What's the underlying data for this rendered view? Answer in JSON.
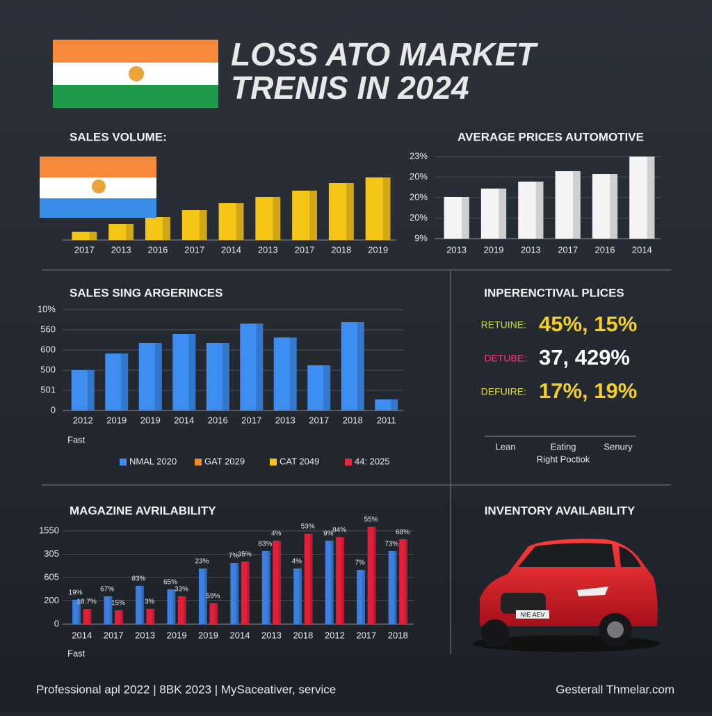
{
  "title_lines": [
    "LOSS ATO MARKET",
    "TRENIS IN 2024"
  ],
  "chart_data": [
    {
      "type": "bar",
      "title": "SALES VOLUME:",
      "categories": [
        "2017",
        "2013",
        "2016",
        "2017",
        "2014",
        "2013",
        "2017",
        "2018",
        "2019"
      ],
      "values": [
        12,
        23,
        33,
        43,
        53,
        62,
        71,
        82,
        90
      ],
      "color": "#f5c518"
    },
    {
      "type": "bar",
      "title": "AVERAGE PRICES AUTOMOTIVE",
      "y_labels": [
        "23%",
        "20%",
        "20%",
        "20%",
        "9%"
      ],
      "categories": [
        "2013",
        "2019",
        "2013",
        "2017",
        "2016",
        "2014"
      ],
      "values": [
        60,
        72,
        82,
        97,
        93,
        118
      ],
      "color": "#f4f4f4",
      "grid": true
    },
    {
      "type": "bar",
      "title": "SALES SING ARGERINCES",
      "y_labels": [
        "10%",
        "560",
        "600",
        "500",
        "501",
        "0"
      ],
      "categories": [
        "2012",
        "2019",
        "2019",
        "2014",
        "2016",
        "2017",
        "2013",
        "2017",
        "2018",
        "2011"
      ],
      "values": [
        58,
        82,
        97,
        110,
        97,
        125,
        105,
        65,
        127,
        16
      ],
      "color": "#3d8ef0",
      "grid": true,
      "x_label": "Fast",
      "legend": [
        {
          "name": "NMAL 2020",
          "color": "#3d8ef0"
        },
        {
          "name": "GAT 2029",
          "color": "#f08a24"
        },
        {
          "name": "CAT 2049",
          "color": "#f5c518"
        },
        {
          "name": "44: 2025",
          "color": "#e8263a"
        }
      ]
    },
    {
      "type": "grouped_bar",
      "title": "MAGAZINE AVRILABILITY",
      "y_labels": [
        "1550",
        "305",
        "605",
        "200",
        "0"
      ],
      "categories": [
        "2014",
        "2017",
        "2013",
        "2019",
        "2019",
        "2014",
        "2013",
        "2018",
        "2012",
        "2017",
        "2018"
      ],
      "series": [
        {
          "color": "#3d7fe0",
          "values": [
            35,
            40,
            55,
            50,
            80,
            88,
            105,
            80,
            120,
            78,
            105
          ]
        },
        {
          "color": "#e0203a",
          "values": [
            22,
            20,
            22,
            40,
            30,
            90,
            120,
            130,
            125,
            140,
            122
          ]
        }
      ],
      "annotations": [
        "19%",
        "67%",
        "83%",
        "65%",
        "23%",
        "7%",
        "83%",
        "4%",
        "9%",
        "7%",
        "73%"
      ],
      "annotations2": [
        "18.7%",
        "15%",
        "3%",
        "33%",
        "59%",
        "35%",
        "4%",
        "53%",
        "84%",
        "55%",
        "68%"
      ],
      "grid": true,
      "x_label": "Fast"
    }
  ],
  "key_figures": {
    "title": "INPERENCTIVAL PLICES",
    "rows": [
      {
        "label": "RETUINE:",
        "value": "45%, 15%"
      },
      {
        "label": "DETUBE:",
        "value": "37, 429%"
      },
      {
        "label": "DEFUIRE:",
        "value": "17%, 19%"
      }
    ],
    "axis_labels": [
      "Lean",
      "Eating",
      "Senury"
    ],
    "caption": "Right Poctiok"
  },
  "inventory": {
    "title": "INVENTORY AVAILABILITY",
    "plate": "NIE AEV"
  },
  "footer": {
    "left": "Professional apl 2022 | 8BK 2023 | MySaceativer, service",
    "right": "Gesterall Thmelar.com"
  }
}
